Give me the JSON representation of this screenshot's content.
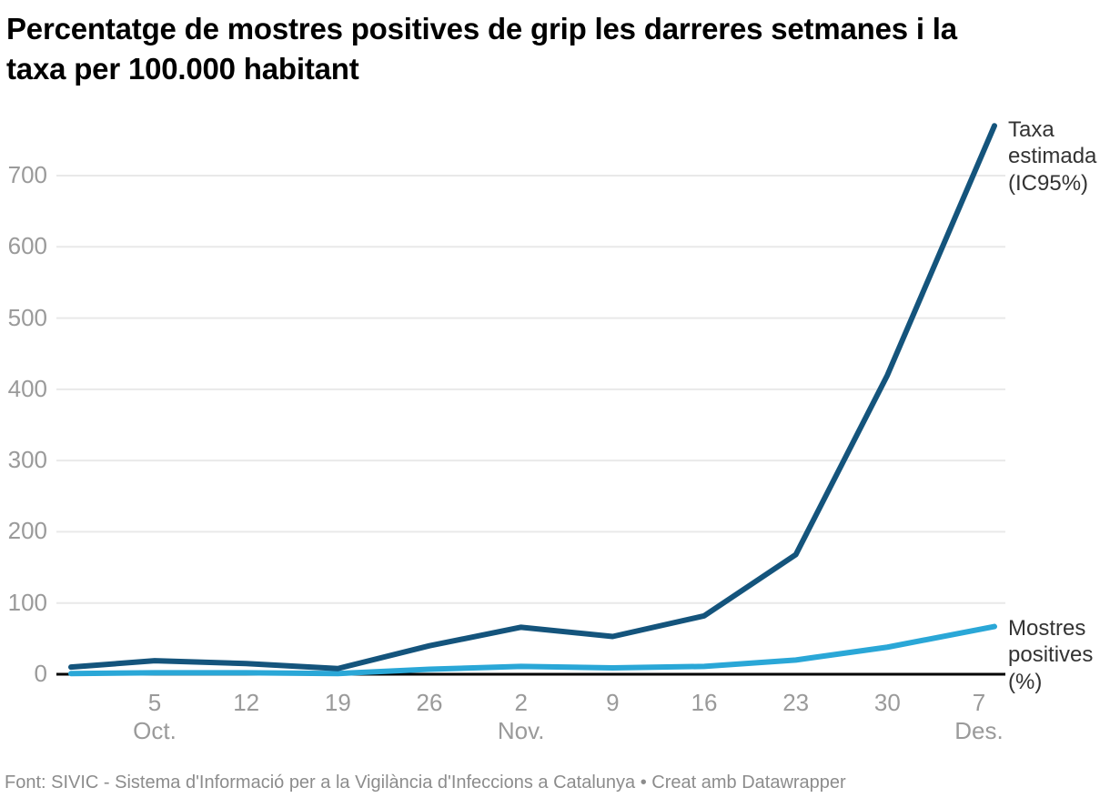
{
  "title": "Percentatge de mostres positives de grip les darreres setmanes i la taxa per 100.000 habitant",
  "footer": "Font: SIVIC - Sistema d'Informació per a la Vigilància d'Infeccions a Catalunya • Creat amb Datawrapper",
  "colors": {
    "background": "#ffffff",
    "title_text": "#000000",
    "grid": "#e9e9e9",
    "axis_baseline": "#000000",
    "tick_label": "#9a9a9a",
    "legend_text": "#333333",
    "footer_text": "#8c8c8c",
    "series_dark_blue": "#14547c",
    "series_light_blue": "#2aa7d7"
  },
  "chart_data": {
    "type": "line",
    "title": "Percentatge de mostres positives de grip les darreres setmanes i la taxa per 100.000 habitant",
    "xlabel": "",
    "ylabel": "",
    "ylim": [
      0,
      770
    ],
    "y_ticks": [
      0,
      100,
      200,
      300,
      400,
      500,
      600,
      700
    ],
    "grid": "horizontal",
    "legend_position": "right-of-line-ends",
    "x_ticks": [
      {
        "day": "5",
        "month": "Oct."
      },
      {
        "day": "12",
        "month": ""
      },
      {
        "day": "19",
        "month": ""
      },
      {
        "day": "26",
        "month": ""
      },
      {
        "day": "2",
        "month": "Nov."
      },
      {
        "day": "9",
        "month": ""
      },
      {
        "day": "16",
        "month": ""
      },
      {
        "day": "23",
        "month": ""
      },
      {
        "day": "30",
        "month": ""
      },
      {
        "day": "7",
        "month": "Des."
      }
    ],
    "x_note": "weekly points; first point one week before first tick, last point just after last tick",
    "series": [
      {
        "id": "taxa-estimada",
        "name": "Taxa estimada (IC95%)",
        "color": "#14547c",
        "values": [
          10,
          19,
          15,
          8,
          40,
          66,
          53,
          82,
          168,
          420,
          770
        ]
      },
      {
        "id": "mostres-positives",
        "name": "Mostres positives (%)",
        "color": "#2aa7d7",
        "values": [
          1,
          2,
          2,
          1,
          7,
          11,
          9,
          11,
          20,
          38,
          67
        ]
      }
    ]
  }
}
